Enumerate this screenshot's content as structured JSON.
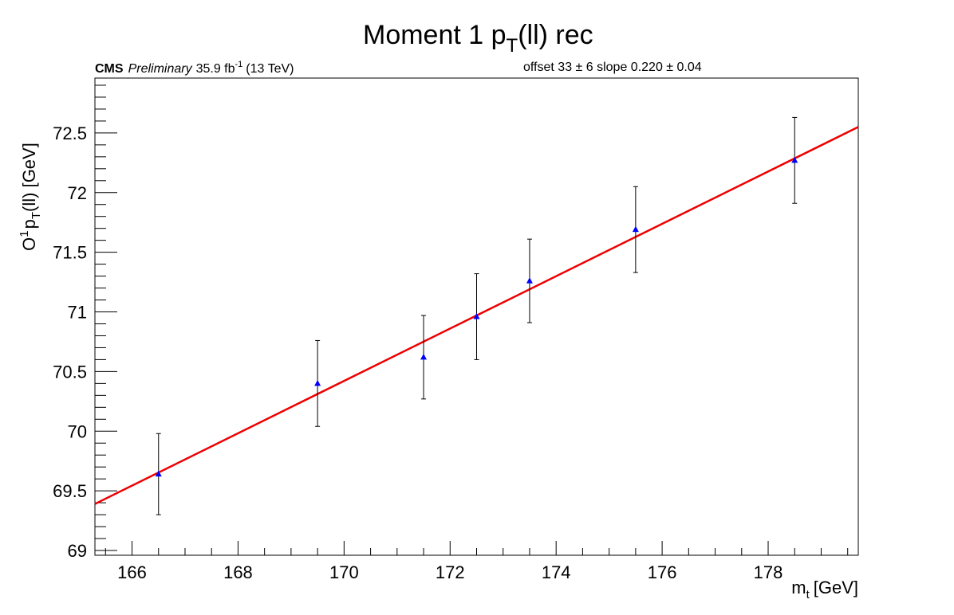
{
  "chart_data": {
    "type": "scatter",
    "title": {
      "prefix": "Moment 1  p",
      "sub": "T",
      "suffix": "(ll) rec"
    },
    "experiment": {
      "name": "CMS",
      "status": "Preliminary",
      "lumi_value": "35.9 fb",
      "lumi_exp": "-1",
      "energy": "(13 TeV)"
    },
    "fit_info": "offset 33 ± 6   slope 0.220 ± 0.04",
    "xlabel": {
      "base": "m",
      "sub": "t",
      "unit": "[GeV]"
    },
    "ylabel": {
      "base": "O",
      "sup": "1",
      "p": "p",
      "sub": "T",
      "rest": "(ll) [GeV]"
    },
    "xlim": [
      165.3,
      179.7
    ],
    "ylim": [
      68.96,
      72.96
    ],
    "x_ticks": [
      "166",
      "168",
      "170",
      "172",
      "174",
      "176",
      "178"
    ],
    "y_ticks": [
      "69",
      "69.5",
      "70",
      "70.5",
      "71",
      "71.5",
      "72",
      "72.5"
    ],
    "series": [
      {
        "marker_color": "#0000ff",
        "x": [
          166.5,
          169.5,
          171.5,
          172.5,
          173.5,
          175.5,
          178.5
        ],
        "y": [
          69.64,
          70.4,
          70.62,
          70.96,
          71.26,
          71.69,
          72.27
        ],
        "yerr": [
          0.34,
          0.36,
          0.35,
          0.36,
          0.35,
          0.36,
          0.36
        ]
      }
    ],
    "fit_line": {
      "color": "#ee0000",
      "x": [
        165.3,
        179.7
      ],
      "y": [
        69.39,
        72.55
      ]
    },
    "grid": false,
    "legend": "none"
  }
}
